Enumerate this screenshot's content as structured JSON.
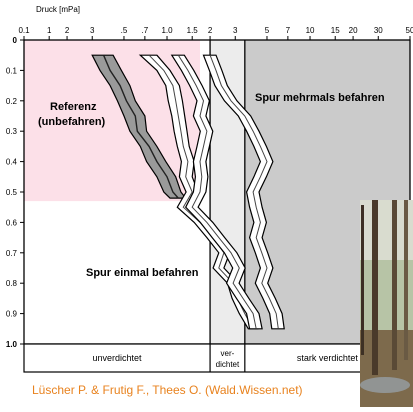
{
  "chart_data": {
    "type": "line",
    "title": "",
    "xlabel": "Druck [mPa]",
    "ylabel": "",
    "x_scale": "log",
    "xlim": [
      0.1,
      50
    ],
    "ylim": [
      0,
      1.0
    ],
    "y_inverted": true,
    "x_ticks": [
      "0.1",
      "1",
      "2",
      "3",
      ".5",
      ".7",
      "1.0",
      "1.5",
      "2",
      "3",
      "5",
      "7",
      "10",
      "15",
      "20",
      "30",
      "50"
    ],
    "y_ticks": [
      "0",
      "0.1",
      "0.2",
      "0.3",
      "0.4",
      "0.5",
      "0.6",
      "0.7",
      "0.8",
      "0.9",
      "1.0"
    ],
    "zones": [
      {
        "label": "unverdichtet",
        "x_range": [
          0.1,
          2
        ],
        "color": "#ffffff"
      },
      {
        "label_line1": "ver-",
        "label_line2": "dichtet",
        "x_range": [
          2,
          3.5
        ],
        "color": "#ececec"
      },
      {
        "label": "stark verdichtet",
        "x_range": [
          3.5,
          50
        ],
        "color": "#cbcbcb"
      }
    ],
    "reference_area": {
      "x_range": [
        0.1,
        1.7
      ],
      "y_range": [
        0,
        0.53
      ],
      "color": "#fce0e8"
    },
    "annotations": {
      "referenz_line1": "Referenz",
      "referenz_line2": "(unbefahren)",
      "einmal": "Spur einmal befahren",
      "mehrmals": "Spur mehrmals befahren"
    },
    "series": [
      {
        "style": "band-thick",
        "y": [
          0.05,
          0.1,
          0.15,
          0.2,
          0.25,
          0.3,
          0.35,
          0.4,
          0.45,
          0.5,
          0.52
        ],
        "x": [
          0.36,
          0.4,
          0.47,
          0.52,
          0.6,
          0.62,
          0.75,
          0.85,
          1.0,
          1.1,
          1.2
        ],
        "x_lower": [
          0.3,
          0.34,
          0.4,
          0.45,
          0.5,
          0.55,
          0.65,
          0.72,
          0.85,
          0.95,
          1.05
        ],
        "x_upper": [
          0.42,
          0.48,
          0.55,
          0.6,
          0.7,
          0.72,
          0.85,
          0.98,
          1.15,
          1.25,
          1.35
        ]
      },
      {
        "style": "band-outline",
        "y": [
          0.05,
          0.1,
          0.15,
          0.2,
          0.25,
          0.3,
          0.35,
          0.4,
          0.45,
          0.5,
          0.55,
          0.6,
          0.65,
          0.7,
          0.75,
          0.8,
          0.85,
          0.9,
          0.95
        ],
        "x": [
          0.75,
          0.95,
          1.1,
          1.15,
          1.2,
          1.25,
          1.3,
          1.4,
          1.35,
          1.5,
          1.3,
          1.7,
          2.1,
          2.5,
          2.3,
          2.9,
          3.1,
          3.5,
          4.0
        ],
        "x_lower": [
          0.65,
          0.85,
          0.98,
          1.02,
          1.08,
          1.12,
          1.18,
          1.26,
          1.22,
          1.36,
          1.18,
          1.55,
          1.9,
          2.3,
          2.1,
          2.65,
          2.85,
          3.2,
          3.7
        ],
        "x_upper": [
          0.85,
          1.05,
          1.22,
          1.28,
          1.33,
          1.38,
          1.43,
          1.55,
          1.5,
          1.65,
          1.45,
          1.85,
          2.3,
          2.75,
          2.5,
          3.15,
          3.4,
          3.8,
          4.3
        ]
      },
      {
        "style": "band-outline",
        "y": [
          0.05,
          0.1,
          0.15,
          0.2,
          0.25,
          0.3,
          0.35,
          0.4,
          0.45,
          0.5,
          0.55,
          0.6,
          0.65,
          0.7,
          0.75,
          0.8,
          0.85,
          0.9,
          0.95
        ],
        "x": [
          1.2,
          1.4,
          1.6,
          1.8,
          1.7,
          1.9,
          1.8,
          1.7,
          1.75,
          1.7,
          1.5,
          1.9,
          2.3,
          2.8,
          3.2,
          2.9,
          3.4,
          4.0,
          4.2
        ],
        "x_lower": [
          1.08,
          1.26,
          1.44,
          1.62,
          1.53,
          1.71,
          1.62,
          1.53,
          1.58,
          1.53,
          1.35,
          1.71,
          2.07,
          2.52,
          2.88,
          2.61,
          3.06,
          3.6,
          3.78
        ],
        "x_upper": [
          1.32,
          1.54,
          1.76,
          1.98,
          1.87,
          2.09,
          1.98,
          1.87,
          1.93,
          1.87,
          1.65,
          2.09,
          2.53,
          3.08,
          3.52,
          3.19,
          3.74,
          4.4,
          4.62
        ]
      },
      {
        "style": "band-outline",
        "y": [
          0.05,
          0.1,
          0.15,
          0.2,
          0.25,
          0.3,
          0.35,
          0.4,
          0.45,
          0.5,
          0.55,
          0.6,
          0.65,
          0.7,
          0.75,
          0.8,
          0.85,
          0.9,
          0.95
        ],
        "x": [
          2.0,
          2.2,
          2.4,
          2.8,
          3.5,
          4.0,
          4.5,
          5.0,
          4.5,
          4.0,
          4.2,
          4.5,
          4.2,
          4.6,
          5.0,
          4.6,
          5.2,
          5.8,
          6.0
        ],
        "x_lower": [
          1.8,
          1.98,
          2.16,
          2.52,
          3.15,
          3.6,
          4.05,
          4.5,
          4.05,
          3.6,
          3.78,
          4.05,
          3.78,
          4.14,
          4.5,
          4.14,
          4.68,
          5.22,
          5.4
        ],
        "x_upper": [
          2.2,
          2.42,
          2.64,
          3.08,
          3.85,
          4.4,
          4.95,
          5.5,
          4.95,
          4.4,
          4.62,
          4.95,
          4.62,
          5.06,
          5.5,
          5.06,
          5.72,
          6.38,
          6.6
        ]
      }
    ]
  },
  "credit": "Lüscher P. & Frutig F., Thees O. (Wald.Wissen.net)",
  "photo": {
    "name": "forest-track-photo"
  }
}
